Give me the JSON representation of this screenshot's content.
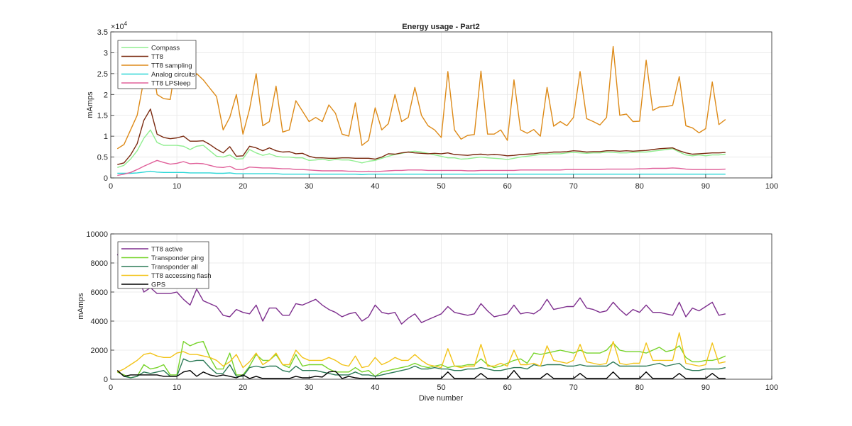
{
  "chart_data": [
    {
      "type": "line",
      "title": "Energy usage - Part2",
      "xlabel": "",
      "ylabel": "mAmps",
      "y_exponent_label": "×10",
      "y_exponent_power": "4",
      "xlim": [
        0,
        100
      ],
      "ylim": [
        0,
        35000
      ],
      "grid": true,
      "legend_position": "top-left",
      "x_ticks": [
        "0",
        "10",
        "20",
        "30",
        "40",
        "50",
        "60",
        "70",
        "80",
        "90",
        "100"
      ],
      "y_ticks": [
        {
          "value": 0,
          "label": "0"
        },
        {
          "value": 5000,
          "label": "0.5"
        },
        {
          "value": 10000,
          "label": "1"
        },
        {
          "value": 15000,
          "label": "1.5"
        },
        {
          "value": 20000,
          "label": "2"
        },
        {
          "value": 25000,
          "label": "2.5"
        },
        {
          "value": 30000,
          "label": "3"
        },
        {
          "value": 35000,
          "label": "3.5"
        }
      ],
      "series": [
        {
          "name": "Compass",
          "color": "#90ee90",
          "values": [
            2500,
            3000,
            4500,
            6500,
            9500,
            11500,
            8500,
            7800,
            7800,
            7800,
            7600,
            6800,
            7600,
            7800,
            6500,
            5200,
            5000,
            5500,
            4500,
            4600,
            6800,
            6000,
            5400,
            5800,
            5200,
            5000,
            5000,
            4800,
            4800,
            4200,
            4300,
            4500,
            4200,
            4400,
            4300,
            4300,
            4000,
            3600,
            4000,
            4200,
            4700,
            5200,
            5600,
            5900,
            6200,
            6400,
            6200,
            5900,
            5500,
            5200,
            4800,
            4800,
            4500,
            4600,
            4800,
            5000,
            4800,
            4700,
            4600,
            4400,
            4700,
            5000,
            5200,
            5400,
            5600,
            5700,
            5800,
            5800,
            6000,
            6100,
            6000,
            5900,
            6000,
            6000,
            6200,
            6100,
            6000,
            6000,
            6100,
            6200,
            6200,
            6400,
            6600,
            6800,
            7000,
            6200,
            5500,
            5300,
            5500,
            5300,
            5500,
            5500,
            5700
          ]
        },
        {
          "name": "TT8",
          "color": "#7a2a10",
          "values": [
            3200,
            3600,
            5500,
            8200,
            13800,
            16500,
            10500,
            9700,
            9400,
            9600,
            10000,
            8800,
            8800,
            8900,
            8000,
            6900,
            6000,
            7500,
            5200,
            5300,
            7600,
            7200,
            6500,
            7200,
            6500,
            6200,
            6300,
            5800,
            5900,
            5200,
            4800,
            4800,
            4700,
            4700,
            4800,
            4800,
            4700,
            4700,
            4700,
            4500,
            5000,
            5800,
            5700,
            6000,
            6200,
            6000,
            5900,
            5800,
            5900,
            5800,
            6000,
            5600,
            5500,
            5400,
            5600,
            5700,
            5500,
            5600,
            5500,
            5300,
            5400,
            5600,
            5700,
            5800,
            6000,
            6000,
            6200,
            6200,
            6300,
            6500,
            6400,
            6200,
            6300,
            6300,
            6500,
            6500,
            6400,
            6500,
            6400,
            6500,
            6600,
            6800,
            7000,
            7100,
            7200,
            6500,
            6000,
            5700,
            5800,
            5900,
            6000,
            6000,
            6100
          ]
        },
        {
          "name": "TT8 sampling",
          "color": "#dd8a18",
          "values": [
            7000,
            8000,
            11500,
            15000,
            23500,
            30500,
            20000,
            19000,
            18800,
            29000,
            21500,
            22000,
            25000,
            23500,
            21500,
            19500,
            11500,
            14500,
            20000,
            10500,
            16500,
            25000,
            12500,
            13500,
            22000,
            11000,
            11500,
            18500,
            16000,
            13500,
            14500,
            13500,
            17500,
            15500,
            10500,
            10000,
            18000,
            7800,
            9000,
            16800,
            11500,
            13000,
            20000,
            13500,
            14500,
            21700,
            15000,
            12500,
            11500,
            9700,
            25500,
            11500,
            9300,
            10200,
            10400,
            25600,
            10500,
            10500,
            11500,
            9000,
            23500,
            11500,
            10700,
            11600,
            10000,
            21700,
            12400,
            13500,
            12500,
            14500,
            25500,
            14200,
            13500,
            12700,
            14500,
            31500,
            15000,
            15300,
            13500,
            13600,
            28200,
            16200,
            17000,
            17100,
            17400,
            24300,
            12500,
            12000,
            10800,
            11800,
            23000,
            12800,
            14000
          ]
        },
        {
          "name": "Analog circuits",
          "color": "#2ad6d6",
          "values": [
            1100,
            1100,
            1100,
            1200,
            1400,
            1600,
            1400,
            1300,
            1300,
            1300,
            1300,
            1200,
            1200,
            1200,
            1200,
            1100,
            1100,
            1200,
            1000,
            1000,
            1000,
            1000,
            1000,
            1000,
            1000,
            900,
            900,
            900,
            900,
            900,
            900,
            900,
            900,
            900,
            900,
            900,
            900,
            800,
            900,
            900,
            900,
            900,
            900,
            900,
            900,
            900,
            900,
            900,
            900,
            900,
            900,
            900,
            900,
            900,
            900,
            900,
            900,
            900,
            900,
            900,
            900,
            900,
            900,
            900,
            900,
            900,
            900,
            900,
            900,
            900,
            900,
            900,
            900,
            900,
            900,
            900,
            900,
            900,
            900,
            900,
            900,
            900,
            900,
            900,
            900,
            900,
            900,
            900,
            900,
            900,
            900,
            900,
            900
          ]
        },
        {
          "name": "TT8 LPSleep",
          "color": "#e0609a",
          "values": [
            600,
            900,
            1300,
            2000,
            2800,
            3500,
            4200,
            3700,
            3300,
            3500,
            3900,
            3400,
            3500,
            3400,
            3000,
            2600,
            2500,
            2800,
            2000,
            2000,
            2600,
            2500,
            2400,
            2400,
            2300,
            2200,
            2200,
            2000,
            2000,
            1900,
            1800,
            1700,
            1700,
            1700,
            1700,
            1600,
            1600,
            1500,
            1600,
            1500,
            1600,
            1700,
            1800,
            1800,
            1900,
            1900,
            1900,
            1800,
            1800,
            1800,
            1800,
            1800,
            1800,
            1700,
            1700,
            1800,
            1800,
            1800,
            1800,
            1800,
            1800,
            1900,
            1900,
            1900,
            1900,
            1900,
            1900,
            1900,
            2000,
            2000,
            2000,
            2000,
            2000,
            2000,
            2100,
            2100,
            2100,
            2100,
            2100,
            2200,
            2200,
            2300,
            2300,
            2300,
            2400,
            2300,
            2100,
            2000,
            2000,
            2000,
            2000,
            2000,
            2100
          ]
        }
      ]
    },
    {
      "type": "line",
      "title": "",
      "xlabel": "Dive number",
      "ylabel": "mAmps",
      "xlim": [
        0,
        100
      ],
      "ylim": [
        0,
        10000
      ],
      "grid": true,
      "legend_position": "top-left",
      "x_ticks": [
        "0",
        "10",
        "20",
        "30",
        "40",
        "50",
        "60",
        "70",
        "80",
        "90",
        "100"
      ],
      "y_ticks": [
        {
          "value": 0,
          "label": "0"
        },
        {
          "value": 2000,
          "label": "2000"
        },
        {
          "value": 4000,
          "label": "4000"
        },
        {
          "value": 6000,
          "label": "6000"
        },
        {
          "value": 8000,
          "label": "8000"
        },
        {
          "value": 10000,
          "label": "10000"
        }
      ],
      "series": [
        {
          "name": "TT8 active",
          "color": "#7e2f8e",
          "values": [
            8600,
            7900,
            7500,
            7200,
            6000,
            6300,
            5900,
            5900,
            5900,
            6000,
            5500,
            5100,
            6200,
            5400,
            5200,
            5000,
            4400,
            4300,
            4800,
            4600,
            4500,
            5100,
            4000,
            4900,
            4900,
            4400,
            4400,
            5200,
            5100,
            5300,
            5500,
            5100,
            4800,
            4600,
            4300,
            4500,
            4600,
            4000,
            4300,
            5100,
            4600,
            4500,
            4600,
            3800,
            4200,
            4500,
            3900,
            4100,
            4300,
            4500,
            5000,
            4600,
            4500,
            4400,
            4500,
            5200,
            4700,
            4300,
            4400,
            4500,
            5100,
            4500,
            4600,
            4500,
            4800,
            5500,
            4800,
            4900,
            5000,
            5000,
            5600,
            4900,
            4800,
            4600,
            4700,
            5300,
            4800,
            4400,
            4800,
            4600,
            5100,
            4600,
            4600,
            4500,
            4400,
            5300,
            4300,
            4900,
            4700,
            5000,
            5300,
            4400,
            4500
          ]
        },
        {
          "name": "Transponder ping",
          "color": "#77d42a",
          "values": [
            500,
            300,
            100,
            200,
            1000,
            700,
            800,
            1000,
            300,
            300,
            2600,
            2300,
            2500,
            2600,
            1500,
            700,
            700,
            1800,
            300,
            300,
            900,
            1700,
            1300,
            1300,
            1700,
            1000,
            800,
            1700,
            900,
            1000,
            1000,
            1000,
            700,
            500,
            500,
            500,
            800,
            500,
            600,
            200,
            500,
            600,
            700,
            800,
            900,
            1100,
            900,
            800,
            900,
            1000,
            800,
            900,
            900,
            1000,
            1000,
            1400,
            1000,
            800,
            900,
            1100,
            1300,
            1400,
            1100,
            1800,
            1700,
            1800,
            1900,
            2000,
            1900,
            1800,
            2000,
            1800,
            1800,
            1800,
            2000,
            2500,
            2000,
            1900,
            1900,
            1900,
            1800,
            2000,
            2200,
            1900,
            2000,
            2300,
            1500,
            1200,
            1200,
            1300,
            1300,
            1400,
            1600
          ]
        },
        {
          "name": "Transponder all",
          "color": "#2c7a57",
          "values": [
            600,
            200,
            100,
            200,
            500,
            400,
            500,
            600,
            200,
            200,
            1400,
            1200,
            1300,
            1300,
            800,
            400,
            400,
            1000,
            200,
            200,
            800,
            900,
            800,
            900,
            900,
            600,
            500,
            900,
            600,
            600,
            600,
            500,
            400,
            300,
            300,
            300,
            500,
            300,
            300,
            200,
            300,
            400,
            500,
            600,
            700,
            900,
            700,
            700,
            800,
            700,
            700,
            600,
            600,
            700,
            700,
            800,
            700,
            600,
            600,
            700,
            800,
            800,
            700,
            1000,
            900,
            1000,
            1000,
            1000,
            900,
            900,
            1000,
            900,
            900,
            900,
            900,
            1200,
            900,
            900,
            900,
            900,
            900,
            1000,
            1100,
            900,
            1000,
            1100,
            700,
            600,
            600,
            700,
            700,
            700,
            800
          ]
        },
        {
          "name": "TT8 accessing flash",
          "color": "#f2c318",
          "values": [
            500,
            700,
            1000,
            1300,
            1700,
            1800,
            1600,
            1500,
            1500,
            1800,
            1900,
            1700,
            1700,
            1600,
            1500,
            1300,
            900,
            1200,
            1700,
            800,
            1200,
            1800,
            1000,
            1300,
            1800,
            1000,
            1000,
            2000,
            1500,
            1300,
            1300,
            1300,
            1500,
            1300,
            1000,
            900,
            1600,
            800,
            900,
            1500,
            1000,
            1200,
            1500,
            1300,
            1300,
            1700,
            1300,
            1000,
            900,
            800,
            2100,
            900,
            800,
            900,
            900,
            2400,
            900,
            900,
            1100,
            900,
            2000,
            1000,
            1000,
            1100,
            900,
            2300,
            1300,
            1200,
            1100,
            1300,
            2400,
            1200,
            1100,
            1000,
            1100,
            2600,
            1100,
            1000,
            1100,
            1100,
            2500,
            1300,
            1300,
            1300,
            1300,
            3200,
            1100,
            1000,
            900,
            1000,
            2500,
            1100,
            1200
          ]
        },
        {
          "name": "GPS",
          "color": "#000000",
          "values": [
            600,
            200,
            300,
            300,
            300,
            300,
            300,
            200,
            200,
            200,
            500,
            600,
            200,
            500,
            300,
            200,
            300,
            200,
            100,
            300,
            50,
            200,
            50,
            50,
            50,
            50,
            50,
            200,
            100,
            100,
            200,
            150,
            500,
            550,
            50,
            200,
            100,
            50,
            50,
            50,
            50,
            50,
            50,
            50,
            50,
            50,
            50,
            50,
            50,
            50,
            500,
            50,
            50,
            50,
            50,
            400,
            50,
            50,
            50,
            50,
            600,
            50,
            50,
            50,
            50,
            400,
            50,
            50,
            50,
            50,
            400,
            50,
            50,
            50,
            50,
            500,
            50,
            50,
            50,
            50,
            500,
            50,
            50,
            50,
            50,
            400,
            50,
            50,
            50,
            50,
            400,
            50,
            50
          ]
        }
      ]
    }
  ]
}
